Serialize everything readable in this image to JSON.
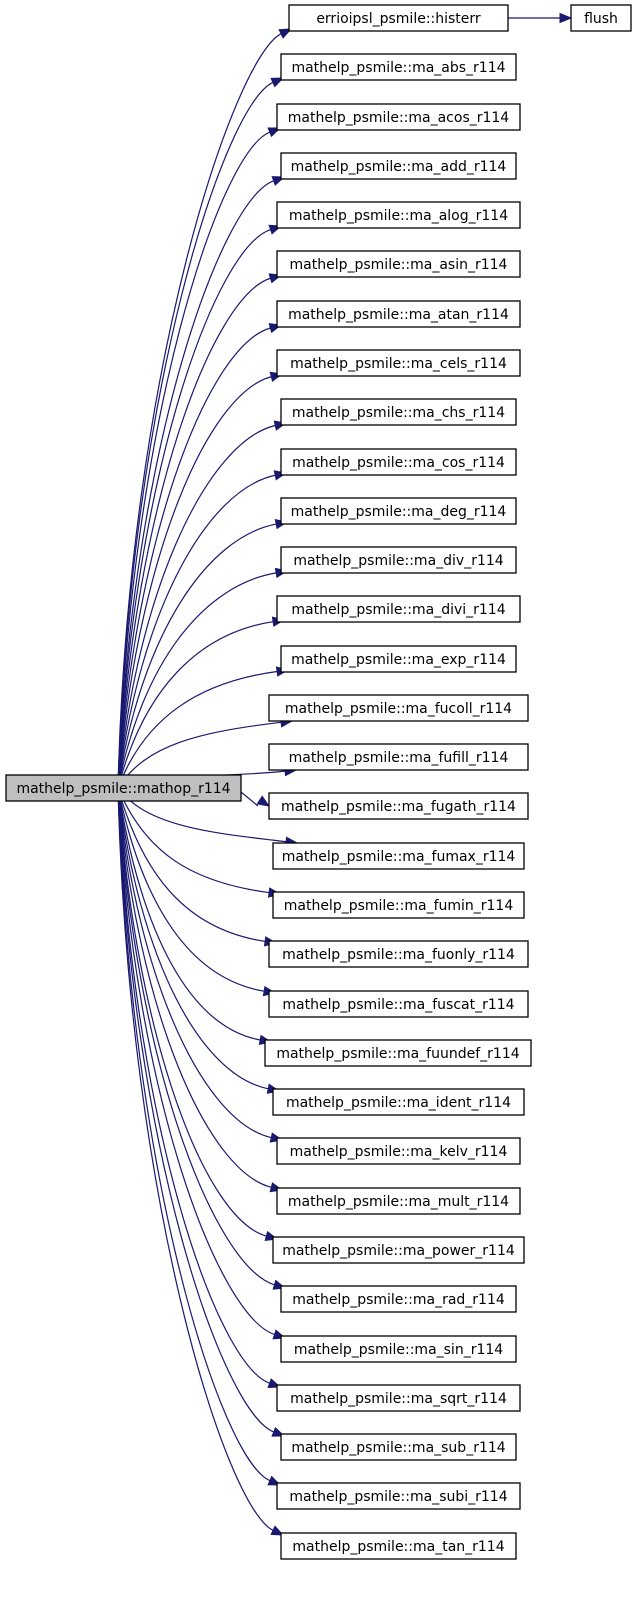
{
  "colors": {
    "edge": "#191970",
    "root_fill": "#bfbfbf",
    "node_fill": "#ffffff",
    "node_border": "#000000",
    "background": "#ffffff"
  },
  "diagram": {
    "type": "call-graph",
    "root": "mathelp_psmile::mathop_r114",
    "nodes": [
      "mathelp_psmile::mathop_r114",
      "errioipsl_psmile::histerr",
      "flush",
      "mathelp_psmile::ma_abs_r114",
      "mathelp_psmile::ma_acos_r114",
      "mathelp_psmile::ma_add_r114",
      "mathelp_psmile::ma_alog_r114",
      "mathelp_psmile::ma_asin_r114",
      "mathelp_psmile::ma_atan_r114",
      "mathelp_psmile::ma_cels_r114",
      "mathelp_psmile::ma_chs_r114",
      "mathelp_psmile::ma_cos_r114",
      "mathelp_psmile::ma_deg_r114",
      "mathelp_psmile::ma_div_r114",
      "mathelp_psmile::ma_divi_r114",
      "mathelp_psmile::ma_exp_r114",
      "mathelp_psmile::ma_fucoll_r114",
      "mathelp_psmile::ma_fufill_r114",
      "mathelp_psmile::ma_fugath_r114",
      "mathelp_psmile::ma_fumax_r114",
      "mathelp_psmile::ma_fumin_r114",
      "mathelp_psmile::ma_fuonly_r114",
      "mathelp_psmile::ma_fuscat_r114",
      "mathelp_psmile::ma_fuundef_r114",
      "mathelp_psmile::ma_ident_r114",
      "mathelp_psmile::ma_kelv_r114",
      "mathelp_psmile::ma_mult_r114",
      "mathelp_psmile::ma_power_r114",
      "mathelp_psmile::ma_rad_r114",
      "mathelp_psmile::ma_sin_r114",
      "mathelp_psmile::ma_sqrt_r114",
      "mathelp_psmile::ma_sub_r114",
      "mathelp_psmile::ma_subi_r114",
      "mathelp_psmile::ma_tan_r114"
    ],
    "edges": [
      [
        "mathelp_psmile::mathop_r114",
        "errioipsl_psmile::histerr"
      ],
      [
        "errioipsl_psmile::histerr",
        "flush"
      ],
      [
        "mathelp_psmile::mathop_r114",
        "mathelp_psmile::ma_abs_r114"
      ],
      [
        "mathelp_psmile::mathop_r114",
        "mathelp_psmile::ma_acos_r114"
      ],
      [
        "mathelp_psmile::mathop_r114",
        "mathelp_psmile::ma_add_r114"
      ],
      [
        "mathelp_psmile::mathop_r114",
        "mathelp_psmile::ma_alog_r114"
      ],
      [
        "mathelp_psmile::mathop_r114",
        "mathelp_psmile::ma_asin_r114"
      ],
      [
        "mathelp_psmile::mathop_r114",
        "mathelp_psmile::ma_atan_r114"
      ],
      [
        "mathelp_psmile::mathop_r114",
        "mathelp_psmile::ma_cels_r114"
      ],
      [
        "mathelp_psmile::mathop_r114",
        "mathelp_psmile::ma_chs_r114"
      ],
      [
        "mathelp_psmile::mathop_r114",
        "mathelp_psmile::ma_cos_r114"
      ],
      [
        "mathelp_psmile::mathop_r114",
        "mathelp_psmile::ma_deg_r114"
      ],
      [
        "mathelp_psmile::mathop_r114",
        "mathelp_psmile::ma_div_r114"
      ],
      [
        "mathelp_psmile::mathop_r114",
        "mathelp_psmile::ma_divi_r114"
      ],
      [
        "mathelp_psmile::mathop_r114",
        "mathelp_psmile::ma_exp_r114"
      ],
      [
        "mathelp_psmile::mathop_r114",
        "mathelp_psmile::ma_fucoll_r114"
      ],
      [
        "mathelp_psmile::mathop_r114",
        "mathelp_psmile::ma_fufill_r114"
      ],
      [
        "mathelp_psmile::mathop_r114",
        "mathelp_psmile::ma_fugath_r114"
      ],
      [
        "mathelp_psmile::mathop_r114",
        "mathelp_psmile::ma_fumax_r114"
      ],
      [
        "mathelp_psmile::mathop_r114",
        "mathelp_psmile::ma_fumin_r114"
      ],
      [
        "mathelp_psmile::mathop_r114",
        "mathelp_psmile::ma_fuonly_r114"
      ],
      [
        "mathelp_psmile::mathop_r114",
        "mathelp_psmile::ma_fuscat_r114"
      ],
      [
        "mathelp_psmile::mathop_r114",
        "mathelp_psmile::ma_fuundef_r114"
      ],
      [
        "mathelp_psmile::mathop_r114",
        "mathelp_psmile::ma_ident_r114"
      ],
      [
        "mathelp_psmile::mathop_r114",
        "mathelp_psmile::ma_kelv_r114"
      ],
      [
        "mathelp_psmile::mathop_r114",
        "mathelp_psmile::ma_mult_r114"
      ],
      [
        "mathelp_psmile::mathop_r114",
        "mathelp_psmile::ma_power_r114"
      ],
      [
        "mathelp_psmile::mathop_r114",
        "mathelp_psmile::ma_rad_r114"
      ],
      [
        "mathelp_psmile::mathop_r114",
        "mathelp_psmile::ma_sin_r114"
      ],
      [
        "mathelp_psmile::mathop_r114",
        "mathelp_psmile::ma_sqrt_r114"
      ],
      [
        "mathelp_psmile::mathop_r114",
        "mathelp_psmile::ma_sub_r114"
      ],
      [
        "mathelp_psmile::mathop_r114",
        "mathelp_psmile::ma_subi_r114"
      ],
      [
        "mathelp_psmile::mathop_r114",
        "mathelp_psmile::ma_tan_r114"
      ]
    ]
  }
}
